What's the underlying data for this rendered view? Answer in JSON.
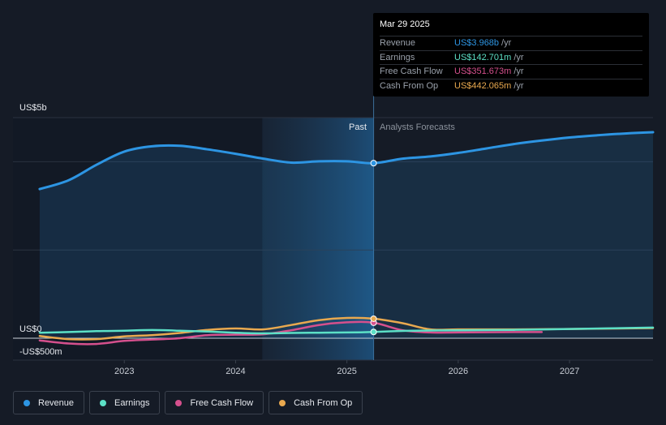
{
  "chart_data": {
    "type": "line",
    "y_axis_labels": [
      "US$5b",
      "US$0",
      "-US$500m"
    ],
    "ylim": [
      -500,
      5000
    ],
    "x_ticks": [
      "2023",
      "2024",
      "2025",
      "2026",
      "2027"
    ],
    "x_tick_values": [
      2023.0,
      2024.0,
      2025.0,
      2026.0,
      2027.0
    ],
    "xlim": [
      2022.0,
      2027.75
    ],
    "past_label": "Past",
    "forecast_label": "Analysts Forecasts",
    "divider_x": 2025.24,
    "past_shade_start": 2024.24,
    "series": [
      {
        "name": "Revenue",
        "color": "#2d95e3",
        "x": [
          2022.24,
          2022.5,
          2022.75,
          2023.0,
          2023.25,
          2023.5,
          2023.75,
          2024.0,
          2024.25,
          2024.5,
          2024.75,
          2025.0,
          2025.24,
          2025.5,
          2025.75,
          2026.0,
          2026.25,
          2026.5,
          2026.75,
          2027.0,
          2027.25,
          2027.5,
          2027.75
        ],
        "values": [
          3380,
          3580,
          3930,
          4230,
          4350,
          4360,
          4280,
          4180,
          4070,
          3980,
          4010,
          4010,
          3968,
          4070,
          4120,
          4200,
          4300,
          4400,
          4480,
          4550,
          4600,
          4640,
          4670
        ]
      },
      {
        "name": "Earnings",
        "color": "#5ce0c6",
        "x": [
          2022.24,
          2022.5,
          2022.75,
          2023.0,
          2023.25,
          2023.5,
          2023.75,
          2024.0,
          2024.25,
          2024.5,
          2024.75,
          2025.0,
          2025.24,
          2025.5,
          2025.75,
          2026.0,
          2026.5,
          2027.0,
          2027.75
        ],
        "values": [
          125,
          140,
          160,
          170,
          185,
          170,
          150,
          125,
          110,
          120,
          125,
          130,
          142.7,
          165,
          175,
          180,
          190,
          210,
          240
        ]
      },
      {
        "name": "Free Cash Flow",
        "color": "#d5508d",
        "x": [
          2022.24,
          2022.5,
          2022.75,
          2023.0,
          2023.25,
          2023.5,
          2023.75,
          2024.0,
          2024.25,
          2024.5,
          2024.75,
          2025.0,
          2025.24,
          2025.5,
          2025.75,
          2026.0,
          2026.5,
          2026.75
        ],
        "values": [
          -50,
          -120,
          -130,
          -60,
          -30,
          0,
          70,
          80,
          90,
          180,
          300,
          360,
          351.7,
          180,
          130,
          130,
          140,
          140
        ]
      },
      {
        "name": "Cash From Op",
        "color": "#e9a94f",
        "x": [
          2022.24,
          2022.5,
          2022.75,
          2023.0,
          2023.25,
          2023.5,
          2023.75,
          2024.0,
          2024.25,
          2024.5,
          2024.75,
          2025.0,
          2025.24,
          2025.5,
          2025.75,
          2026.0,
          2026.5,
          2027.0,
          2027.75
        ],
        "values": [
          50,
          -20,
          -20,
          40,
          70,
          120,
          190,
          220,
          200,
          300,
          410,
          460,
          442.1,
          340,
          200,
          200,
          200,
          210,
          230
        ]
      }
    ]
  },
  "tooltip": {
    "date": "Mar 29 2025",
    "rows": [
      {
        "name": "Revenue",
        "value": "US$3.968b",
        "unit": "/yr",
        "color": "#2d95e3"
      },
      {
        "name": "Earnings",
        "value": "US$142.701m",
        "unit": "/yr",
        "color": "#5ce0c6"
      },
      {
        "name": "Free Cash Flow",
        "value": "US$351.673m",
        "unit": "/yr",
        "color": "#d5508d"
      },
      {
        "name": "Cash From Op",
        "value": "US$442.065m",
        "unit": "/yr",
        "color": "#e9a94f"
      }
    ]
  },
  "legend": [
    {
      "label": "Revenue",
      "color": "#2d95e3"
    },
    {
      "label": "Earnings",
      "color": "#5ce0c6"
    },
    {
      "label": "Free Cash Flow",
      "color": "#d5508d"
    },
    {
      "label": "Cash From Op",
      "color": "#e9a94f"
    }
  ]
}
